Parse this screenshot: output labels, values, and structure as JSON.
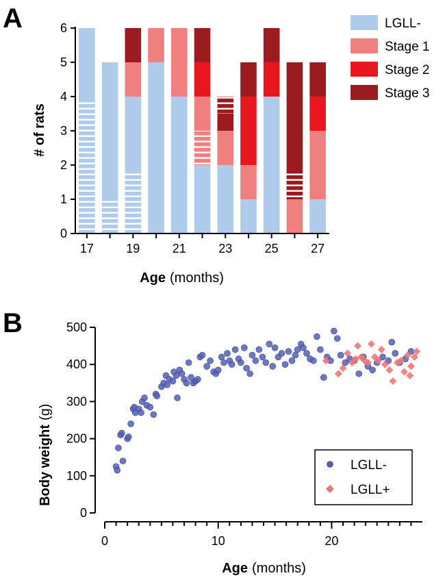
{
  "chart_data": [
    {
      "panel": "A",
      "type": "bar",
      "stacked": true,
      "x": [
        17,
        18,
        19,
        20,
        21,
        22,
        23,
        24,
        25,
        26,
        27
      ],
      "tick_labels": [
        "17",
        "19",
        "21",
        "23",
        "25",
        "27"
      ],
      "xlabel_bold": "Age",
      "xlabel_rest": "(months)",
      "ylabel": "# of rats",
      "ylim": [
        0,
        6
      ],
      "yticks": [
        "0",
        "1",
        "2",
        "3",
        "4",
        "5",
        "6"
      ],
      "legend_position": "right",
      "series": [
        {
          "name": "LGLL-",
          "color": "#aecbeb",
          "values": [
            6,
            5,
            4,
            5,
            4,
            2,
            2,
            1,
            4,
            0,
            1
          ]
        },
        {
          "name": "Stage 1",
          "color": "#f08080",
          "values": [
            0,
            0,
            1,
            1,
            2,
            2,
            1,
            1,
            0,
            1,
            2
          ]
        },
        {
          "name": "Stage 2",
          "color": "#e8171e",
          "values": [
            0,
            0,
            0,
            0,
            0,
            1,
            0,
            2,
            1,
            0,
            1
          ]
        },
        {
          "name": "Stage 3",
          "color": "#9b1b1e",
          "values": [
            0,
            0,
            1,
            0,
            0,
            1,
            1,
            1,
            1,
            4,
            1
          ]
        }
      ],
      "hatched_note": "white horizontal stripes mark sub-portions of some bars",
      "hatched_segments": [
        {
          "x": 17,
          "y0": 0,
          "y1": 3.85
        },
        {
          "x": 18,
          "y0": 0,
          "y1": 1.0
        },
        {
          "x": 19,
          "y0": 0,
          "y1": 1.85
        },
        {
          "x": 22,
          "y0": 2.0,
          "y1": 3.0
        },
        {
          "x": 23,
          "y0": 3.5,
          "y1": 4.0
        },
        {
          "x": 26,
          "y0": 1.0,
          "y1": 1.85
        }
      ]
    },
    {
      "panel": "B",
      "type": "scatter",
      "xlabel_bold": "Age",
      "xlabel_rest": "(months)",
      "ylabel_bold": "Body weight",
      "ylabel_rest": "(g)",
      "xlim": [
        0,
        28
      ],
      "ylim": [
        0,
        500
      ],
      "xticks": [
        "0",
        "10",
        "20"
      ],
      "yticks": [
        "0",
        "100",
        "200",
        "300",
        "400",
        "500"
      ],
      "legend_position": "bottom-right",
      "series": [
        {
          "name": "LGLL-",
          "color": "#5560b5",
          "marker": "circle",
          "points": [
            [
              1.0,
              125
            ],
            [
              1.1,
              115
            ],
            [
              1.2,
              175
            ],
            [
              1.4,
              210
            ],
            [
              1.5,
              215
            ],
            [
              1.6,
              140
            ],
            [
              2.0,
              200
            ],
            [
              2.1,
              205
            ],
            [
              2.3,
              240
            ],
            [
              2.5,
              280
            ],
            [
              2.6,
              285
            ],
            [
              2.7,
              270
            ],
            [
              3.0,
              280
            ],
            [
              3.2,
              270
            ],
            [
              3.3,
              300
            ],
            [
              3.5,
              310
            ],
            [
              3.7,
              290
            ],
            [
              4.0,
              285
            ],
            [
              4.3,
              265
            ],
            [
              4.5,
              320
            ],
            [
              4.6,
              315
            ],
            [
              5.0,
              340
            ],
            [
              5.2,
              350
            ],
            [
              5.4,
              370
            ],
            [
              5.5,
              345
            ],
            [
              5.7,
              360
            ],
            [
              6.0,
              355
            ],
            [
              6.1,
              380
            ],
            [
              6.3,
              370
            ],
            [
              6.4,
              310
            ],
            [
              6.6,
              385
            ],
            [
              6.8,
              375
            ],
            [
              7.0,
              360
            ],
            [
              7.2,
              350
            ],
            [
              7.4,
              405
            ],
            [
              7.6,
              365
            ],
            [
              7.8,
              350
            ],
            [
              8.0,
              355
            ],
            [
              8.2,
              360
            ],
            [
              8.4,
              420
            ],
            [
              8.6,
              425
            ],
            [
              9.0,
              395
            ],
            [
              9.3,
              410
            ],
            [
              9.6,
              380
            ],
            [
              9.8,
              375
            ],
            [
              10.0,
              385
            ],
            [
              10.3,
              420
            ],
            [
              10.5,
              405
            ],
            [
              10.8,
              430
            ],
            [
              11.0,
              410
            ],
            [
              11.2,
              400
            ],
            [
              11.5,
              440
            ],
            [
              11.8,
              415
            ],
            [
              12.0,
              405
            ],
            [
              12.3,
              445
            ],
            [
              12.5,
              390
            ],
            [
              12.8,
              375
            ],
            [
              13.0,
              425
            ],
            [
              13.3,
              410
            ],
            [
              13.6,
              440
            ],
            [
              13.9,
              420
            ],
            [
              14.2,
              405
            ],
            [
              14.5,
              455
            ],
            [
              14.8,
              395
            ],
            [
              15.0,
              445
            ],
            [
              15.3,
              420
            ],
            [
              15.6,
              430
            ],
            [
              15.9,
              400
            ],
            [
              16.2,
              435
            ],
            [
              16.5,
              410
            ],
            [
              16.8,
              425
            ],
            [
              17.0,
              440
            ],
            [
              17.3,
              455
            ],
            [
              17.5,
              445
            ],
            [
              17.8,
              430
            ],
            [
              18.1,
              415
            ],
            [
              18.4,
              410
            ],
            [
              18.7,
              475
            ],
            [
              19.0,
              440
            ],
            [
              19.3,
              365
            ],
            [
              19.6,
              420
            ],
            [
              19.9,
              410
            ],
            [
              20.2,
              490
            ],
            [
              20.5,
              470
            ],
            [
              20.8,
              425
            ],
            [
              21.2,
              405
            ],
            [
              21.6,
              415
            ],
            [
              22.0,
              410
            ],
            [
              22.4,
              375
            ],
            [
              22.8,
              420
            ],
            [
              23.2,
              395
            ],
            [
              23.6,
              385
            ],
            [
              24.0,
              405
            ],
            [
              24.5,
              420
            ],
            [
              25.0,
              410
            ],
            [
              25.3,
              460
            ],
            [
              25.6,
              430
            ],
            [
              26.0,
              405
            ],
            [
              26.5,
              415
            ],
            [
              27.0,
              435
            ]
          ]
        },
        {
          "name": "LGLL+",
          "color": "#ef7777",
          "marker": "diamond",
          "points": [
            [
              19.5,
              410
            ],
            [
              20.6,
              375
            ],
            [
              21.0,
              390
            ],
            [
              21.4,
              430
            ],
            [
              21.8,
              405
            ],
            [
              22.1,
              415
            ],
            [
              22.3,
              450
            ],
            [
              22.6,
              420
            ],
            [
              22.9,
              410
            ],
            [
              23.2,
              405
            ],
            [
              23.5,
              455
            ],
            [
              23.8,
              420
            ],
            [
              24.1,
              410
            ],
            [
              24.4,
              440
            ],
            [
              24.7,
              400
            ],
            [
              25.1,
              385
            ],
            [
              25.4,
              355
            ],
            [
              25.8,
              405
            ],
            [
              26.1,
              410
            ],
            [
              26.4,
              380
            ],
            [
              26.7,
              425
            ],
            [
              27.0,
              395
            ],
            [
              27.3,
              420
            ],
            [
              27.5,
              435
            ],
            [
              26.9,
              370
            ]
          ]
        }
      ]
    }
  ],
  "panel_labels": [
    "A",
    "B"
  ]
}
